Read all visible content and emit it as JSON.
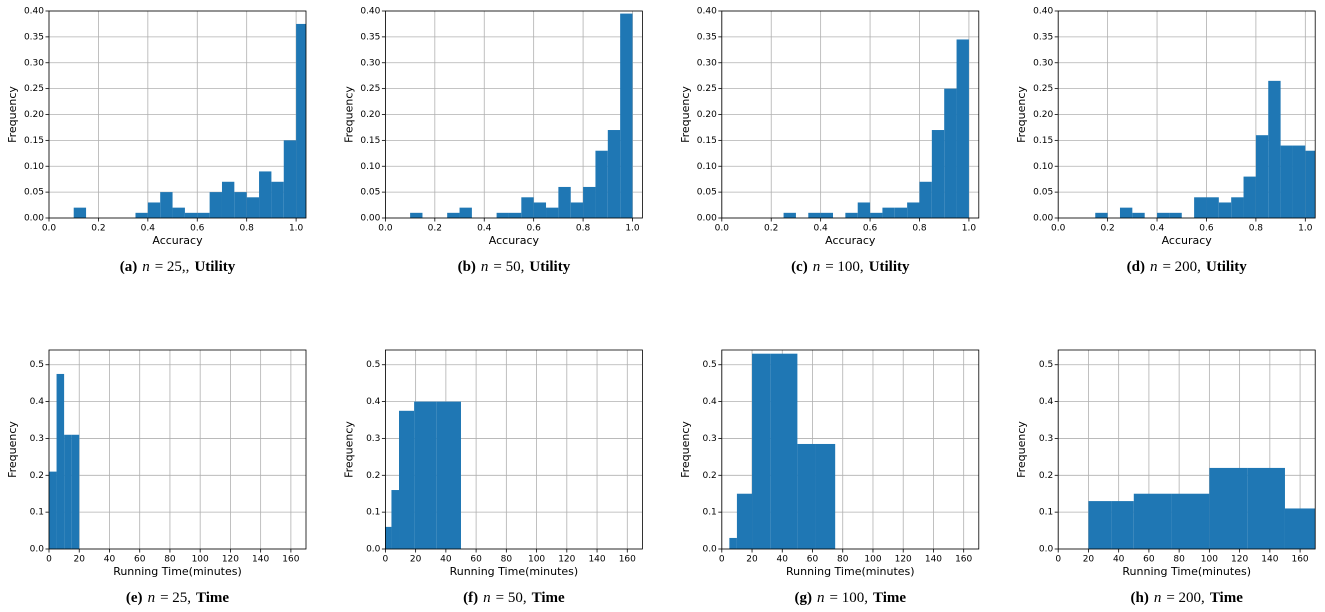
{
  "chart_data": [
    {
      "type": "histogram",
      "xlabel": "Accuracy",
      "ylabel": "Frequency",
      "color": "#1f77b4",
      "grid": true,
      "caption": {
        "label": "(a)",
        "variable": "n",
        "equation": "= 25,,",
        "metric": "Utility"
      },
      "bins": [
        0,
        0.05,
        0.1,
        0.15,
        0.2,
        0.25,
        0.3,
        0.35,
        0.4,
        0.45,
        0.5,
        0.55,
        0.6,
        0.65,
        0.7,
        0.75,
        0.8,
        0.85,
        0.9,
        0.95,
        1,
        1.05
      ],
      "values": [
        0,
        0,
        0.02,
        0,
        0,
        0,
        0,
        0.01,
        0.03,
        0.05,
        0.02,
        0.01,
        0.01,
        0.05,
        0.07,
        0.05,
        0.04,
        0.09,
        0.07,
        0.15,
        0.375
      ],
      "xlim": [
        0,
        1.04
      ],
      "ylim": [
        0,
        0.4
      ],
      "xticks": [
        {
          "value": 0,
          "label": "0.0"
        },
        0.2,
        0.4,
        0.6,
        0.8,
        {
          "value": 1,
          "label": "1.0"
        }
      ],
      "yticks": [
        {
          "value": 0,
          "label": "0.00"
        },
        0.05,
        {
          "value": 0.1,
          "label": "0.10"
        },
        0.15,
        {
          "value": 0.2,
          "label": "0.20"
        },
        0.25,
        {
          "value": 0.3,
          "label": "0.30"
        },
        0.35,
        {
          "value": 0.4,
          "label": "0.40"
        }
      ]
    },
    {
      "type": "histogram",
      "xlabel": "Accuracy",
      "ylabel": "Frequency",
      "color": "#1f77b4",
      "grid": true,
      "caption": {
        "label": "(b)",
        "variable": "n",
        "equation": "= 50,",
        "metric": "Utility"
      },
      "bins": [
        0,
        0.05,
        0.1,
        0.15,
        0.2,
        0.25,
        0.3,
        0.35,
        0.4,
        0.45,
        0.5,
        0.55,
        0.6,
        0.65,
        0.7,
        0.75,
        0.8,
        0.85,
        0.9,
        0.95,
        1,
        1.05
      ],
      "values": [
        0,
        0,
        0.01,
        0,
        0,
        0.01,
        0.02,
        0,
        0,
        0.01,
        0.01,
        0.04,
        0.03,
        0.02,
        0.06,
        0.03,
        0.06,
        0.13,
        0.17,
        0.395,
        0
      ],
      "xlim": [
        0,
        1.04
      ],
      "ylim": [
        0,
        0.4
      ],
      "xticks": [
        {
          "value": 0,
          "label": "0.0"
        },
        0.2,
        0.4,
        0.6,
        0.8,
        {
          "value": 1,
          "label": "1.0"
        }
      ],
      "yticks": [
        {
          "value": 0,
          "label": "0.00"
        },
        0.05,
        {
          "value": 0.1,
          "label": "0.10"
        },
        0.15,
        {
          "value": 0.2,
          "label": "0.20"
        },
        0.25,
        {
          "value": 0.3,
          "label": "0.30"
        },
        0.35,
        {
          "value": 0.4,
          "label": "0.40"
        }
      ]
    },
    {
      "type": "histogram",
      "xlabel": "Accuracy",
      "ylabel": "Frequency",
      "color": "#1f77b4",
      "grid": true,
      "caption": {
        "label": "(c)",
        "variable": "n",
        "equation": "= 100,",
        "metric": "Utility"
      },
      "bins": [
        0,
        0.05,
        0.1,
        0.15,
        0.2,
        0.25,
        0.3,
        0.35,
        0.4,
        0.45,
        0.5,
        0.55,
        0.6,
        0.65,
        0.7,
        0.75,
        0.8,
        0.85,
        0.9,
        0.95,
        1,
        1.05
      ],
      "values": [
        0,
        0,
        0,
        0,
        0,
        0.01,
        0,
        0.01,
        0.01,
        0,
        0.01,
        0.03,
        0.01,
        0.02,
        0.02,
        0.03,
        0.07,
        0.17,
        0.25,
        0.345,
        0
      ],
      "xlim": [
        0,
        1.04
      ],
      "ylim": [
        0,
        0.4
      ],
      "xticks": [
        {
          "value": 0,
          "label": "0.0"
        },
        0.2,
        0.4,
        0.6,
        0.8,
        {
          "value": 1,
          "label": "1.0"
        }
      ],
      "yticks": [
        {
          "value": 0,
          "label": "0.00"
        },
        0.05,
        {
          "value": 0.1,
          "label": "0.10"
        },
        0.15,
        {
          "value": 0.2,
          "label": "0.20"
        },
        0.25,
        {
          "value": 0.3,
          "label": "0.30"
        },
        0.35,
        {
          "value": 0.4,
          "label": "0.40"
        }
      ]
    },
    {
      "type": "histogram",
      "xlabel": "Accuracy",
      "ylabel": "Frequency",
      "color": "#1f77b4",
      "grid": true,
      "caption": {
        "label": "(d)",
        "variable": "n",
        "equation": "= 200,",
        "metric": "Utility"
      },
      "bins": [
        0,
        0.05,
        0.1,
        0.15,
        0.2,
        0.25,
        0.3,
        0.35,
        0.4,
        0.45,
        0.5,
        0.55,
        0.6,
        0.65,
        0.7,
        0.75,
        0.8,
        0.85,
        0.9,
        0.95,
        1,
        1.05
      ],
      "values": [
        0,
        0,
        0,
        0.01,
        0,
        0.02,
        0.01,
        0,
        0.01,
        0.01,
        0,
        0.04,
        0.04,
        0.03,
        0.04,
        0.08,
        0.16,
        0.265,
        0.14,
        0.14,
        0.13
      ],
      "xlim": [
        0,
        1.04
      ],
      "ylim": [
        0,
        0.4
      ],
      "xticks": [
        {
          "value": 0,
          "label": "0.0"
        },
        0.2,
        0.4,
        0.6,
        0.8,
        {
          "value": 1,
          "label": "1.0"
        }
      ],
      "yticks": [
        {
          "value": 0,
          "label": "0.00"
        },
        0.05,
        {
          "value": 0.1,
          "label": "0.10"
        },
        0.15,
        {
          "value": 0.2,
          "label": "0.20"
        },
        0.25,
        {
          "value": 0.3,
          "label": "0.30"
        },
        0.35,
        {
          "value": 0.4,
          "label": "0.40"
        }
      ]
    },
    {
      "type": "histogram",
      "xlabel": "Running Time(minutes)",
      "ylabel": "Frequency",
      "color": "#1f77b4",
      "grid": true,
      "caption": {
        "label": "(e)",
        "variable": "n",
        "equation": "= 25,",
        "metric": "Time"
      },
      "bins": [
        0,
        5,
        10,
        15,
        20
      ],
      "values": [
        0.21,
        0.475,
        0.31,
        0.31
      ],
      "xlim": [
        0,
        170
      ],
      "ylim": [
        0,
        0.54
      ],
      "xticks": [
        0,
        20,
        40,
        60,
        80,
        100,
        120,
        140,
        160
      ],
      "yticks": [
        {
          "value": 0,
          "label": "0.0"
        },
        0.1,
        0.2,
        0.3,
        0.4,
        0.5
      ]
    },
    {
      "type": "histogram",
      "xlabel": "Running Time(minutes)",
      "ylabel": "Frequency",
      "color": "#1f77b4",
      "grid": true,
      "caption": {
        "label": "(f)",
        "variable": "n",
        "equation": "= 50,",
        "metric": "Time"
      },
      "bins": [
        0,
        4,
        9,
        19,
        34,
        50
      ],
      "values": [
        0.06,
        0.16,
        0.375,
        0.4,
        0.4
      ],
      "xlim": [
        0,
        170
      ],
      "ylim": [
        0,
        0.54
      ],
      "xticks": [
        0,
        20,
        40,
        60,
        80,
        100,
        120,
        140,
        160
      ],
      "yticks": [
        {
          "value": 0,
          "label": "0.0"
        },
        0.1,
        0.2,
        0.3,
        0.4,
        0.5
      ]
    },
    {
      "type": "histogram",
      "xlabel": "Running Time(minutes)",
      "ylabel": "Frequency",
      "color": "#1f77b4",
      "grid": true,
      "caption": {
        "label": "(g)",
        "variable": "n",
        "equation": "= 100,",
        "metric": "Time"
      },
      "bins": [
        5,
        10,
        20,
        32,
        50,
        62,
        75
      ],
      "values": [
        0.03,
        0.15,
        0.53,
        0.53,
        0.285,
        0.285
      ],
      "xlim": [
        0,
        170
      ],
      "ylim": [
        0,
        0.54
      ],
      "xticks": [
        0,
        20,
        40,
        60,
        80,
        100,
        120,
        140,
        160
      ],
      "yticks": [
        {
          "value": 0,
          "label": "0.0"
        },
        0.1,
        0.2,
        0.3,
        0.4,
        0.5
      ]
    },
    {
      "type": "histogram",
      "xlabel": "Running Time(minutes)",
      "ylabel": "Frequency",
      "color": "#1f77b4",
      "grid": true,
      "caption": {
        "label": "(h)",
        "variable": "n",
        "equation": "= 200,",
        "metric": "Time"
      },
      "bins": [
        20,
        35,
        50,
        75,
        100,
        125,
        150,
        175
      ],
      "values": [
        0.13,
        0.13,
        0.15,
        0.15,
        0.22,
        0.22,
        0.11
      ],
      "xlim": [
        0,
        170
      ],
      "ylim": [
        0,
        0.54
      ],
      "xticks": [
        0,
        20,
        40,
        60,
        80,
        100,
        120,
        140,
        160
      ],
      "yticks": [
        {
          "value": 0,
          "label": "0.0"
        },
        0.1,
        0.2,
        0.3,
        0.4,
        0.5
      ]
    }
  ]
}
